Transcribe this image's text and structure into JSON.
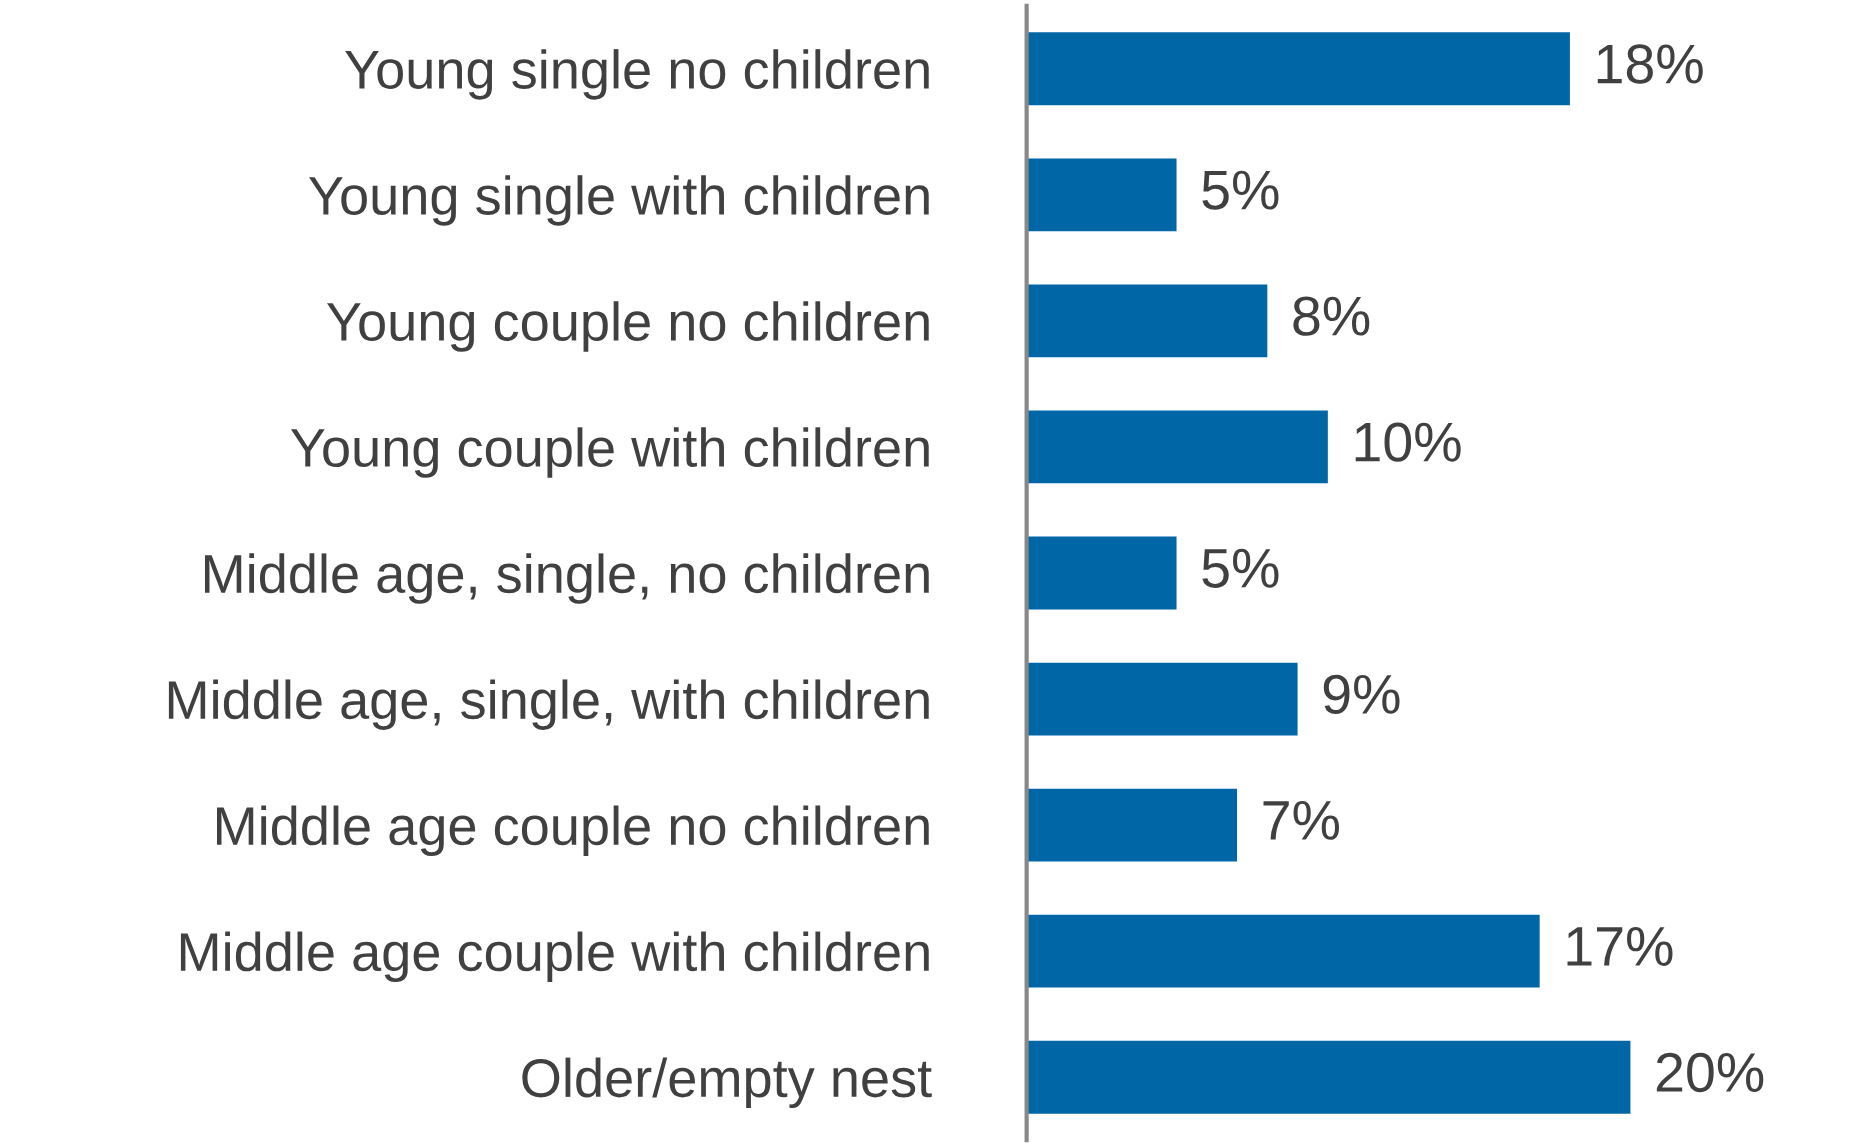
{
  "chart_data": {
    "type": "bar",
    "orientation": "horizontal",
    "categories": [
      "Young single no children",
      "Young single with children",
      "Young couple no children",
      "Young couple with children",
      "Middle age, single, no children",
      "Middle age, single, with children",
      "Middle age couple no children",
      "Middle age couple with children",
      "Older/empty nest"
    ],
    "values": [
      18,
      5,
      8,
      10,
      5,
      9,
      7,
      17,
      20
    ],
    "value_labels": [
      "18%",
      "5%",
      "8%",
      "10%",
      "5%",
      "9%",
      "7%",
      "17%",
      "20%"
    ],
    "color": "#0066a6",
    "tick_labels": "y",
    "grid": false,
    "legend": false
  }
}
